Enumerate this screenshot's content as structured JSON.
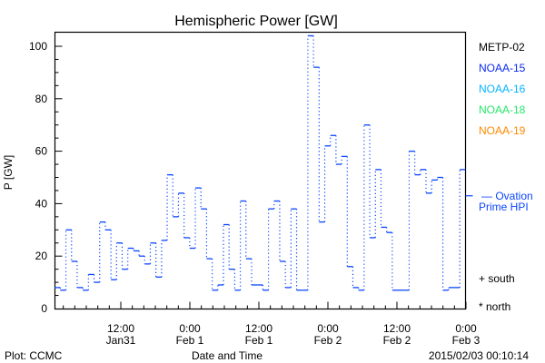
{
  "chart_data": {
    "type": "line",
    "title": "Hemispheric Power [GW]",
    "xlabel": "Date and Time",
    "ylabel": "P [GW]",
    "ylim": [
      0,
      105
    ],
    "yticks": [
      0,
      20,
      40,
      60,
      80,
      100
    ],
    "x_unit": "hours since Jan31 00:00",
    "xlim": [
      0.5,
      71.9
    ],
    "xticks": [
      {
        "hour": 12,
        "line1": "12:00",
        "line2": "Jan31"
      },
      {
        "hour": 24,
        "line1": "0:00",
        "line2": "Feb 1"
      },
      {
        "hour": 36,
        "line1": "12:00",
        "line2": "Feb 1"
      },
      {
        "hour": 48,
        "line1": "0:00",
        "line2": "Feb 2"
      },
      {
        "hour": 60,
        "line1": "12:00",
        "line2": "Feb 2"
      },
      {
        "hour": 72,
        "line1": "0:00",
        "line2": "Feb 3"
      }
    ],
    "grid": false,
    "legend_position": "right",
    "series": [
      {
        "name": "NOAA-15",
        "style": "step",
        "color": "#0a46ff",
        "step_hours": 1,
        "values": [
          8,
          7,
          30,
          18,
          8,
          7,
          13,
          10,
          33,
          30,
          11,
          25,
          15,
          23,
          22,
          20,
          17,
          25,
          12,
          26,
          51,
          35,
          44,
          27,
          23,
          46,
          38,
          19,
          7,
          9,
          32,
          15,
          7,
          41,
          19,
          9,
          9,
          7,
          38,
          41,
          18,
          8,
          38,
          7,
          7,
          104,
          92,
          33,
          62,
          66,
          55,
          58,
          16,
          8,
          7,
          70,
          27,
          53,
          31,
          29,
          7,
          7,
          7,
          60,
          51,
          53,
          44,
          49,
          50,
          7,
          8,
          8,
          53
        ]
      }
    ],
    "ovation": {
      "name": "Ovation Prime HPI",
      "value": 43,
      "color": "#0a46ff"
    },
    "legend": [
      {
        "label": "METP-02",
        "color": "#000000"
      },
      {
        "label": "NOAA-15",
        "color": "#0a2af0"
      },
      {
        "label": "NOAA-16",
        "color": "#00b4ff"
      },
      {
        "label": "NOAA-18",
        "color": "#22e86a"
      },
      {
        "label": "NOAA-19",
        "color": "#ff8a00"
      }
    ],
    "ovation_label_1": "— Ovation",
    "ovation_label_2": "Prime HPI",
    "south_label": "+ south",
    "north_label": "* north"
  },
  "footer": {
    "left": "Plot: CCMC",
    "right": "2015/02/03 00:10:14"
  }
}
